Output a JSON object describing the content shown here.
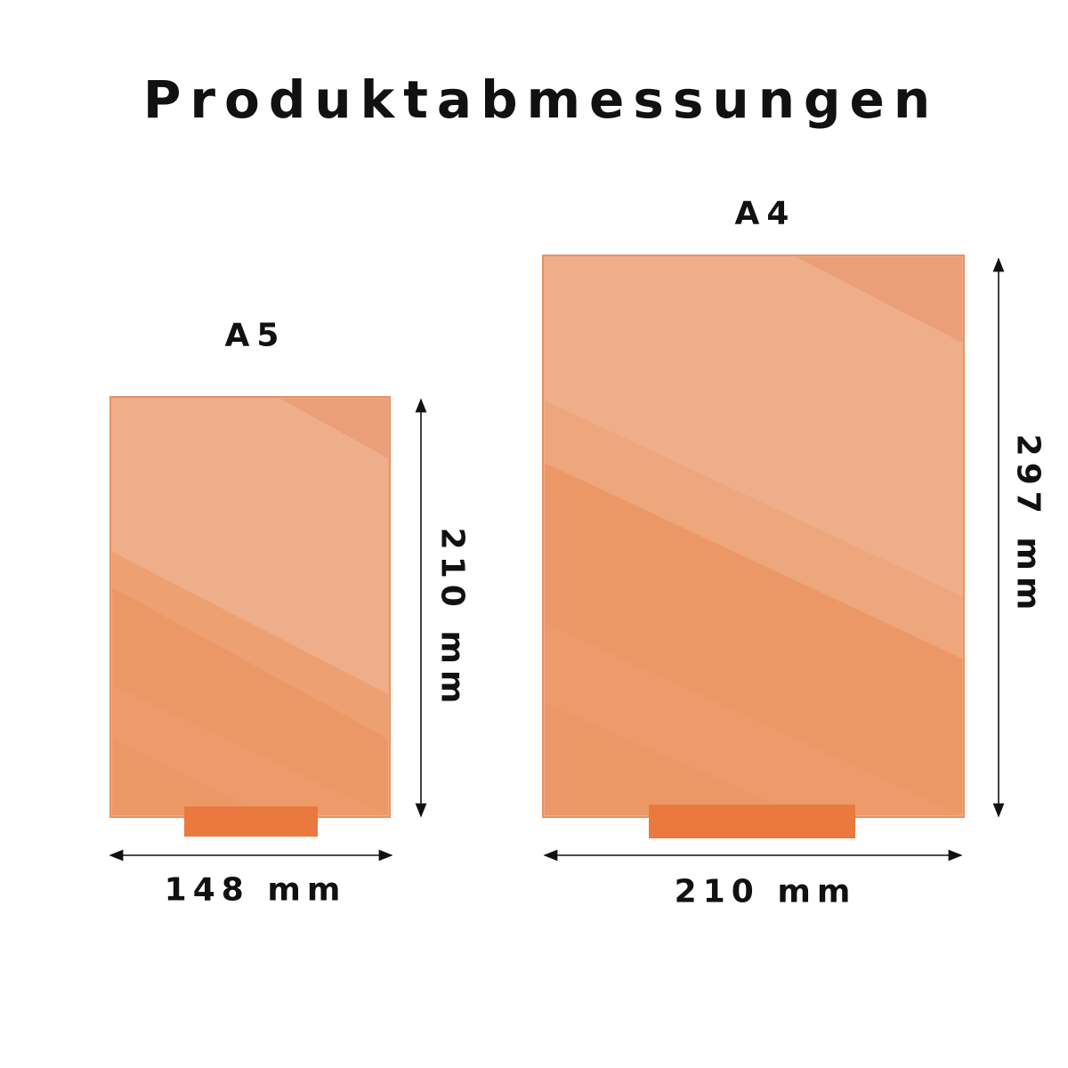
{
  "title": "Produktabmessungen",
  "colors": {
    "panel_light": "#efae8a",
    "panel_dark": "#ea8a58",
    "stand": "#e9793f",
    "text": "#111111"
  },
  "products": [
    {
      "label": "A5",
      "width": "148 mm",
      "height": "210 mm"
    },
    {
      "label": "A4",
      "width": "210 mm",
      "height": "297 mm"
    }
  ]
}
